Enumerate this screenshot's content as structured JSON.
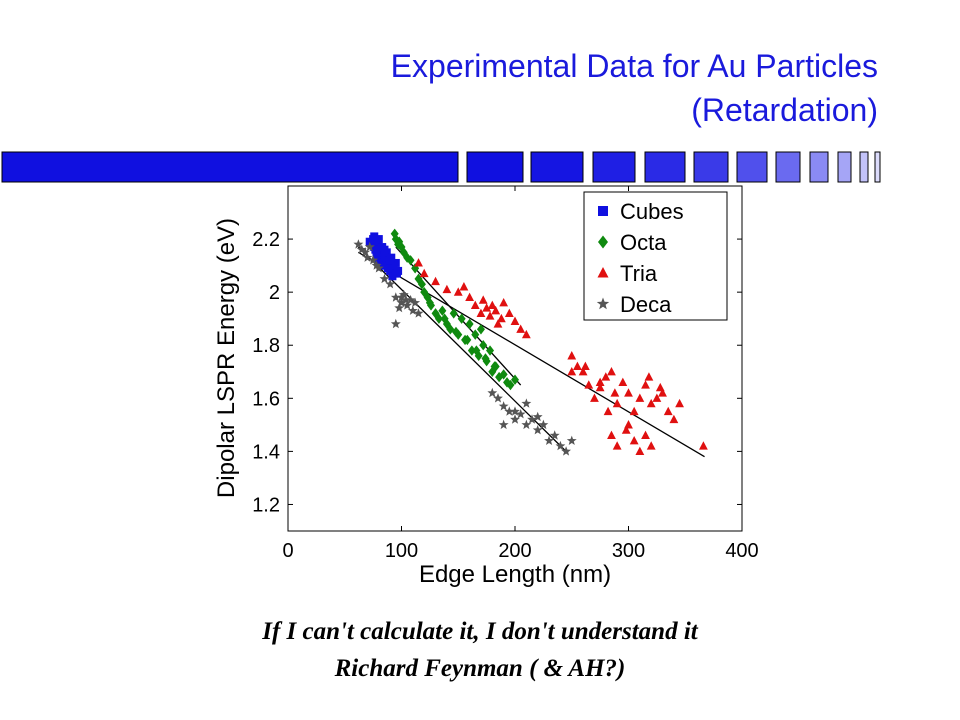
{
  "slide": {
    "title_line1": "Experimental Data for Au Particles",
    "title_line2": "(Retardation)",
    "quote_line1": "If I can't calculate it, I don't understand it",
    "quote_line2": "Richard Feynman ( & AH?)",
    "accent_color": "#1a1adc"
  },
  "chart_data": {
    "type": "scatter",
    "xlabel": "Edge Length (nm)",
    "ylabel": "Dipolar LSPR Energy (eV)",
    "xlim": [
      0,
      400
    ],
    "ylim": [
      1.1,
      2.4
    ],
    "xticks": [
      0,
      100,
      200,
      300,
      400
    ],
    "yticks": [
      1.2,
      1.4,
      1.6,
      1.8,
      2,
      2.2
    ],
    "xtick_labels": [
      "0",
      "100",
      "200",
      "300",
      "400"
    ],
    "ytick_labels": [
      "1.2",
      "1.4",
      "1.6",
      "1.8",
      "2",
      "2.2"
    ],
    "grid": false,
    "legend_position": "top-right",
    "series": [
      {
        "name": "Cubes",
        "marker": "square",
        "color": "#1010e0",
        "x": [
          72,
          74,
          76,
          78,
          80,
          82,
          84,
          86,
          88,
          90,
          92,
          94,
          96,
          75,
          79,
          83,
          87,
          91,
          95,
          78,
          82,
          86,
          90,
          94,
          77,
          81,
          85,
          89,
          93,
          97,
          80,
          84,
          88,
          92,
          76,
          80,
          85,
          90
        ],
        "y": [
          2.19,
          2.18,
          2.17,
          2.16,
          2.15,
          2.14,
          2.13,
          2.12,
          2.11,
          2.1,
          2.09,
          2.08,
          2.07,
          2.2,
          2.19,
          2.17,
          2.15,
          2.13,
          2.11,
          2.14,
          2.12,
          2.1,
          2.08,
          2.07,
          2.16,
          2.15,
          2.14,
          2.12,
          2.1,
          2.08,
          2.11,
          2.1,
          2.09,
          2.06,
          2.21,
          2.2,
          2.16,
          2.12
        ]
      },
      {
        "name": "Octa",
        "marker": "diamond",
        "color": "#0f8a0f",
        "x": [
          95,
          98,
          100,
          102,
          105,
          108,
          112,
          115,
          118,
          120,
          123,
          126,
          130,
          133,
          136,
          140,
          143,
          146,
          150,
          153,
          156,
          160,
          162,
          165,
          168,
          170,
          172,
          175,
          178,
          180,
          183,
          186,
          190,
          193,
          196,
          200,
          125,
          138,
          148,
          158,
          166,
          174,
          182,
          94,
          97
        ],
        "y": [
          2.2,
          2.19,
          2.17,
          2.15,
          2.13,
          2.12,
          2.09,
          2.05,
          2.03,
          2.0,
          1.98,
          1.95,
          1.92,
          1.9,
          1.93,
          1.88,
          1.86,
          1.92,
          1.84,
          1.9,
          1.82,
          1.88,
          1.78,
          1.84,
          1.76,
          1.86,
          1.8,
          1.74,
          1.78,
          1.7,
          1.72,
          1.68,
          1.69,
          1.66,
          1.65,
          1.67,
          1.96,
          1.9,
          1.85,
          1.82,
          1.78,
          1.75,
          1.72,
          2.22,
          2.18
        ]
      },
      {
        "name": "Tria",
        "marker": "triangle",
        "color": "#e01010",
        "x": [
          115,
          120,
          130,
          140,
          150,
          155,
          160,
          165,
          170,
          172,
          175,
          178,
          180,
          183,
          185,
          188,
          190,
          195,
          200,
          205,
          210,
          250,
          255,
          260,
          265,
          270,
          275,
          280,
          282,
          285,
          288,
          290,
          295,
          300,
          305,
          310,
          315,
          320,
          325,
          330,
          335,
          340,
          345,
          285,
          290,
          300,
          305,
          310,
          315,
          320,
          250,
          262,
          275,
          298,
          366,
          318,
          328
        ],
        "y": [
          2.11,
          2.07,
          2.04,
          2.01,
          2.0,
          2.02,
          1.98,
          1.95,
          1.92,
          1.97,
          1.94,
          1.91,
          1.95,
          1.93,
          1.88,
          1.9,
          1.96,
          1.92,
          1.89,
          1.86,
          1.84,
          1.76,
          1.72,
          1.7,
          1.65,
          1.6,
          1.64,
          1.68,
          1.55,
          1.7,
          1.62,
          1.58,
          1.66,
          1.62,
          1.55,
          1.6,
          1.65,
          1.58,
          1.6,
          1.62,
          1.55,
          1.52,
          1.58,
          1.46,
          1.42,
          1.5,
          1.44,
          1.4,
          1.46,
          1.42,
          1.7,
          1.72,
          1.66,
          1.48,
          1.42,
          1.68,
          1.64
        ]
      },
      {
        "name": "Deca",
        "marker": "star",
        "color": "#555555",
        "x": [
          62,
          65,
          68,
          70,
          72,
          75,
          78,
          80,
          85,
          90,
          95,
          100,
          102,
          105,
          108,
          110,
          112,
          115,
          95,
          98,
          180,
          185,
          190,
          195,
          200,
          205,
          210,
          215,
          220,
          225,
          230,
          235,
          240,
          245,
          250,
          190,
          200,
          210,
          220,
          100,
          104
        ],
        "y": [
          2.18,
          2.16,
          2.15,
          2.13,
          2.17,
          2.12,
          2.1,
          2.09,
          2.05,
          2.03,
          1.98,
          1.96,
          1.99,
          1.95,
          1.97,
          1.93,
          1.96,
          1.92,
          1.88,
          1.94,
          1.62,
          1.6,
          1.57,
          1.55,
          1.52,
          1.54,
          1.5,
          1.52,
          1.48,
          1.5,
          1.44,
          1.46,
          1.42,
          1.4,
          1.44,
          1.5,
          1.55,
          1.58,
          1.53,
          1.98,
          1.97
        ]
      }
    ],
    "fit_lines": [
      {
        "x": [
          62,
          245
        ],
        "y": [
          2.17,
          1.4
        ]
      },
      {
        "x": [
          62,
          367
        ],
        "y": [
          2.15,
          1.38
        ]
      },
      {
        "x": [
          95,
          205
        ],
        "y": [
          2.17,
          1.65
        ]
      }
    ]
  }
}
